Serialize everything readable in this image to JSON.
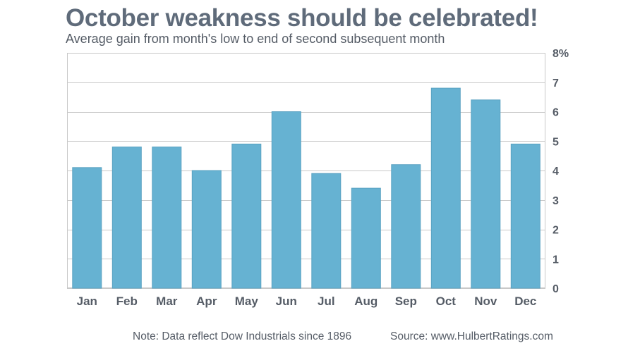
{
  "header": {
    "title": "October weakness should be celebrated!",
    "subtitle": "Average gain from month's low to end of second subsequent month"
  },
  "footer": {
    "note": "Note: Data reflect Dow Industrials since 1896",
    "source": "Source: www.HulbertRatings.com"
  },
  "colors": {
    "bar": "#66b2d2",
    "grid": "#c8c8c8",
    "text": "#555c66"
  },
  "chart_data": {
    "type": "bar",
    "categories": [
      "Jan",
      "Feb",
      "Mar",
      "Apr",
      "May",
      "Jun",
      "Jul",
      "Aug",
      "Sep",
      "Oct",
      "Nov",
      "Dec"
    ],
    "values": [
      4.1,
      4.8,
      4.8,
      4.0,
      4.9,
      6.0,
      3.9,
      3.4,
      4.2,
      6.8,
      6.4,
      4.9
    ],
    "ylim": [
      0,
      8
    ],
    "yticks": [
      "0",
      "1",
      "2",
      "3",
      "4",
      "5",
      "6",
      "7",
      "8%"
    ],
    "yaxis_position": "right",
    "grid": true
  }
}
